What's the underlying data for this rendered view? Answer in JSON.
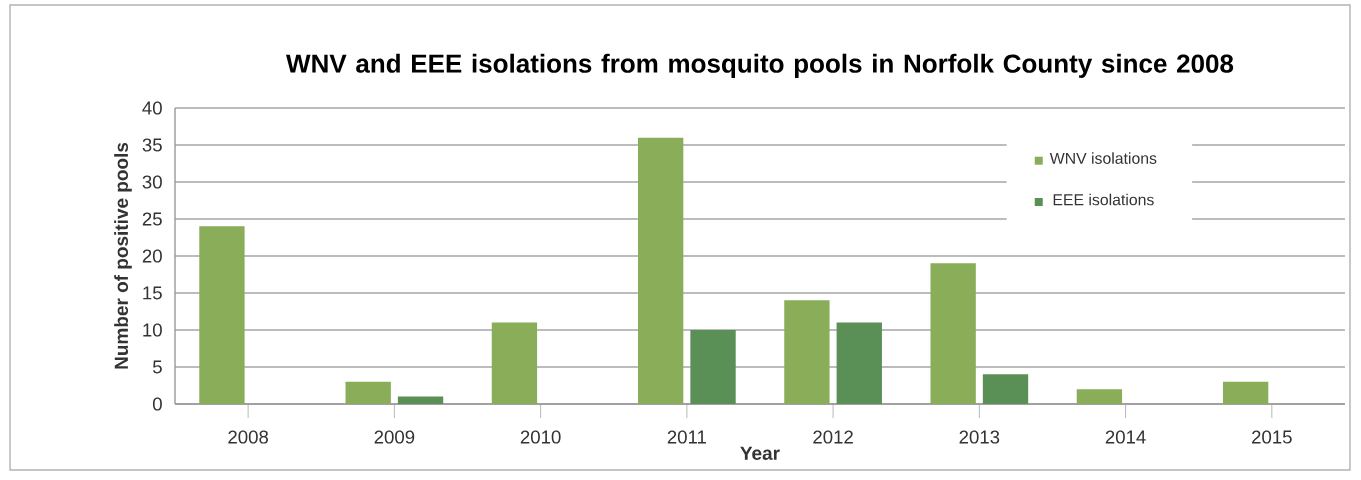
{
  "chart_data": {
    "type": "bar",
    "title": "WNV and EEE isolations from mosquito pools in Norfolk County since 2008",
    "xlabel": "Year",
    "ylabel": "Number of positive pools",
    "categories": [
      "2008",
      "2009",
      "2010",
      "2011",
      "2012",
      "2013",
      "2014",
      "2015"
    ],
    "series": [
      {
        "name": "WNV isolations",
        "color": "#8aad5a",
        "values": [
          24,
          3,
          11,
          36,
          14,
          19,
          2,
          3
        ]
      },
      {
        "name": "EEE isolations",
        "color": "#5a8f55",
        "values": [
          0,
          1,
          0,
          10,
          11,
          4,
          0,
          0
        ]
      }
    ],
    "ylim": [
      0,
      40
    ],
    "yticks": [
      0,
      5,
      10,
      15,
      20,
      25,
      30,
      35,
      40
    ],
    "grid": "y",
    "legend": "top right"
  }
}
